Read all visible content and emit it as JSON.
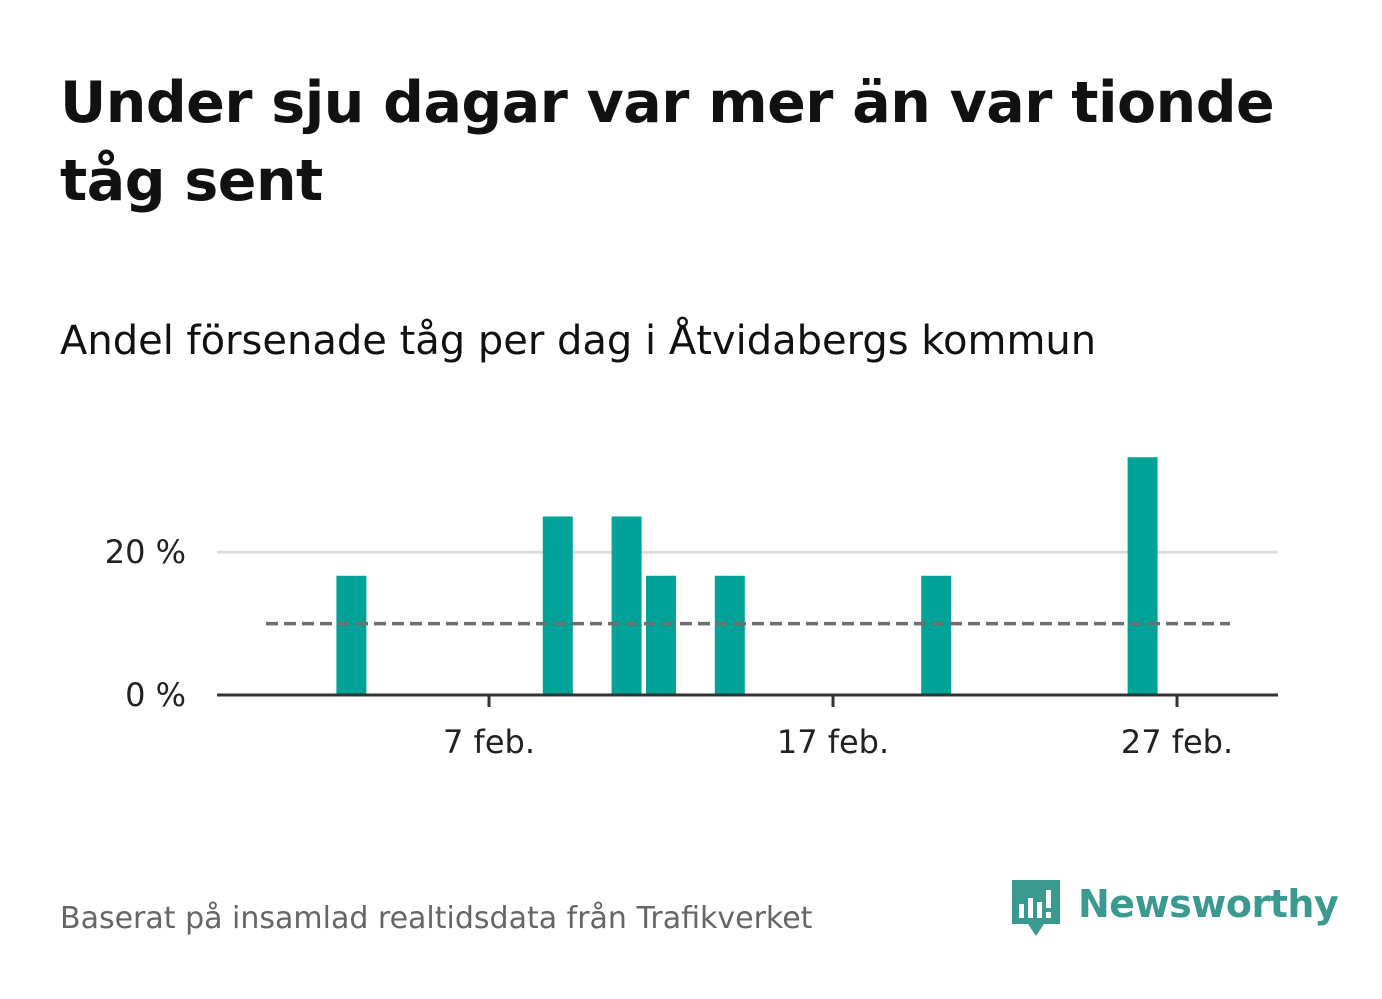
{
  "title": "Under sju dagar var mer än var tionde tåg sent",
  "subtitle": "Andel försenade tåg per dag i Åtvidabergs kommun",
  "footer": "Baserat på insamlad realtidsdata från Trafikverket",
  "brand": {
    "name": "Newsworthy",
    "icon": "newsworthy-logo-icon"
  },
  "colors": {
    "bar": "#00a398",
    "reference_line": "#6f6f6f",
    "grid": "#dddddd",
    "axis": "#333333",
    "brand": "#3a9a8f"
  },
  "chart_data": {
    "type": "bar",
    "x_unit": "day of February",
    "x": [
      1,
      2,
      3,
      4,
      5,
      6,
      7,
      8,
      9,
      10,
      11,
      12,
      13,
      14,
      15,
      16,
      17,
      18,
      19,
      20,
      21,
      22,
      23,
      24,
      25,
      26,
      27,
      28
    ],
    "values": [
      0,
      0,
      16.7,
      0,
      0,
      0,
      0,
      0,
      25,
      0,
      25,
      16.7,
      0,
      16.7,
      0,
      0,
      0,
      0,
      0,
      16.7,
      0,
      0,
      0,
      0,
      0,
      33.3,
      0,
      0
    ],
    "xticks": [
      {
        "x": 7,
        "label": "7 feb."
      },
      {
        "x": 17,
        "label": "17 feb."
      },
      {
        "x": 27,
        "label": "27 feb."
      }
    ],
    "yticks": [
      {
        "y": 0,
        "label": "0 %"
      },
      {
        "y": 20,
        "label": "20 %"
      }
    ],
    "reference_line": {
      "y": 10,
      "style": "dashed"
    },
    "ylim": [
      0,
      36
    ],
    "grid": "horizontal"
  }
}
